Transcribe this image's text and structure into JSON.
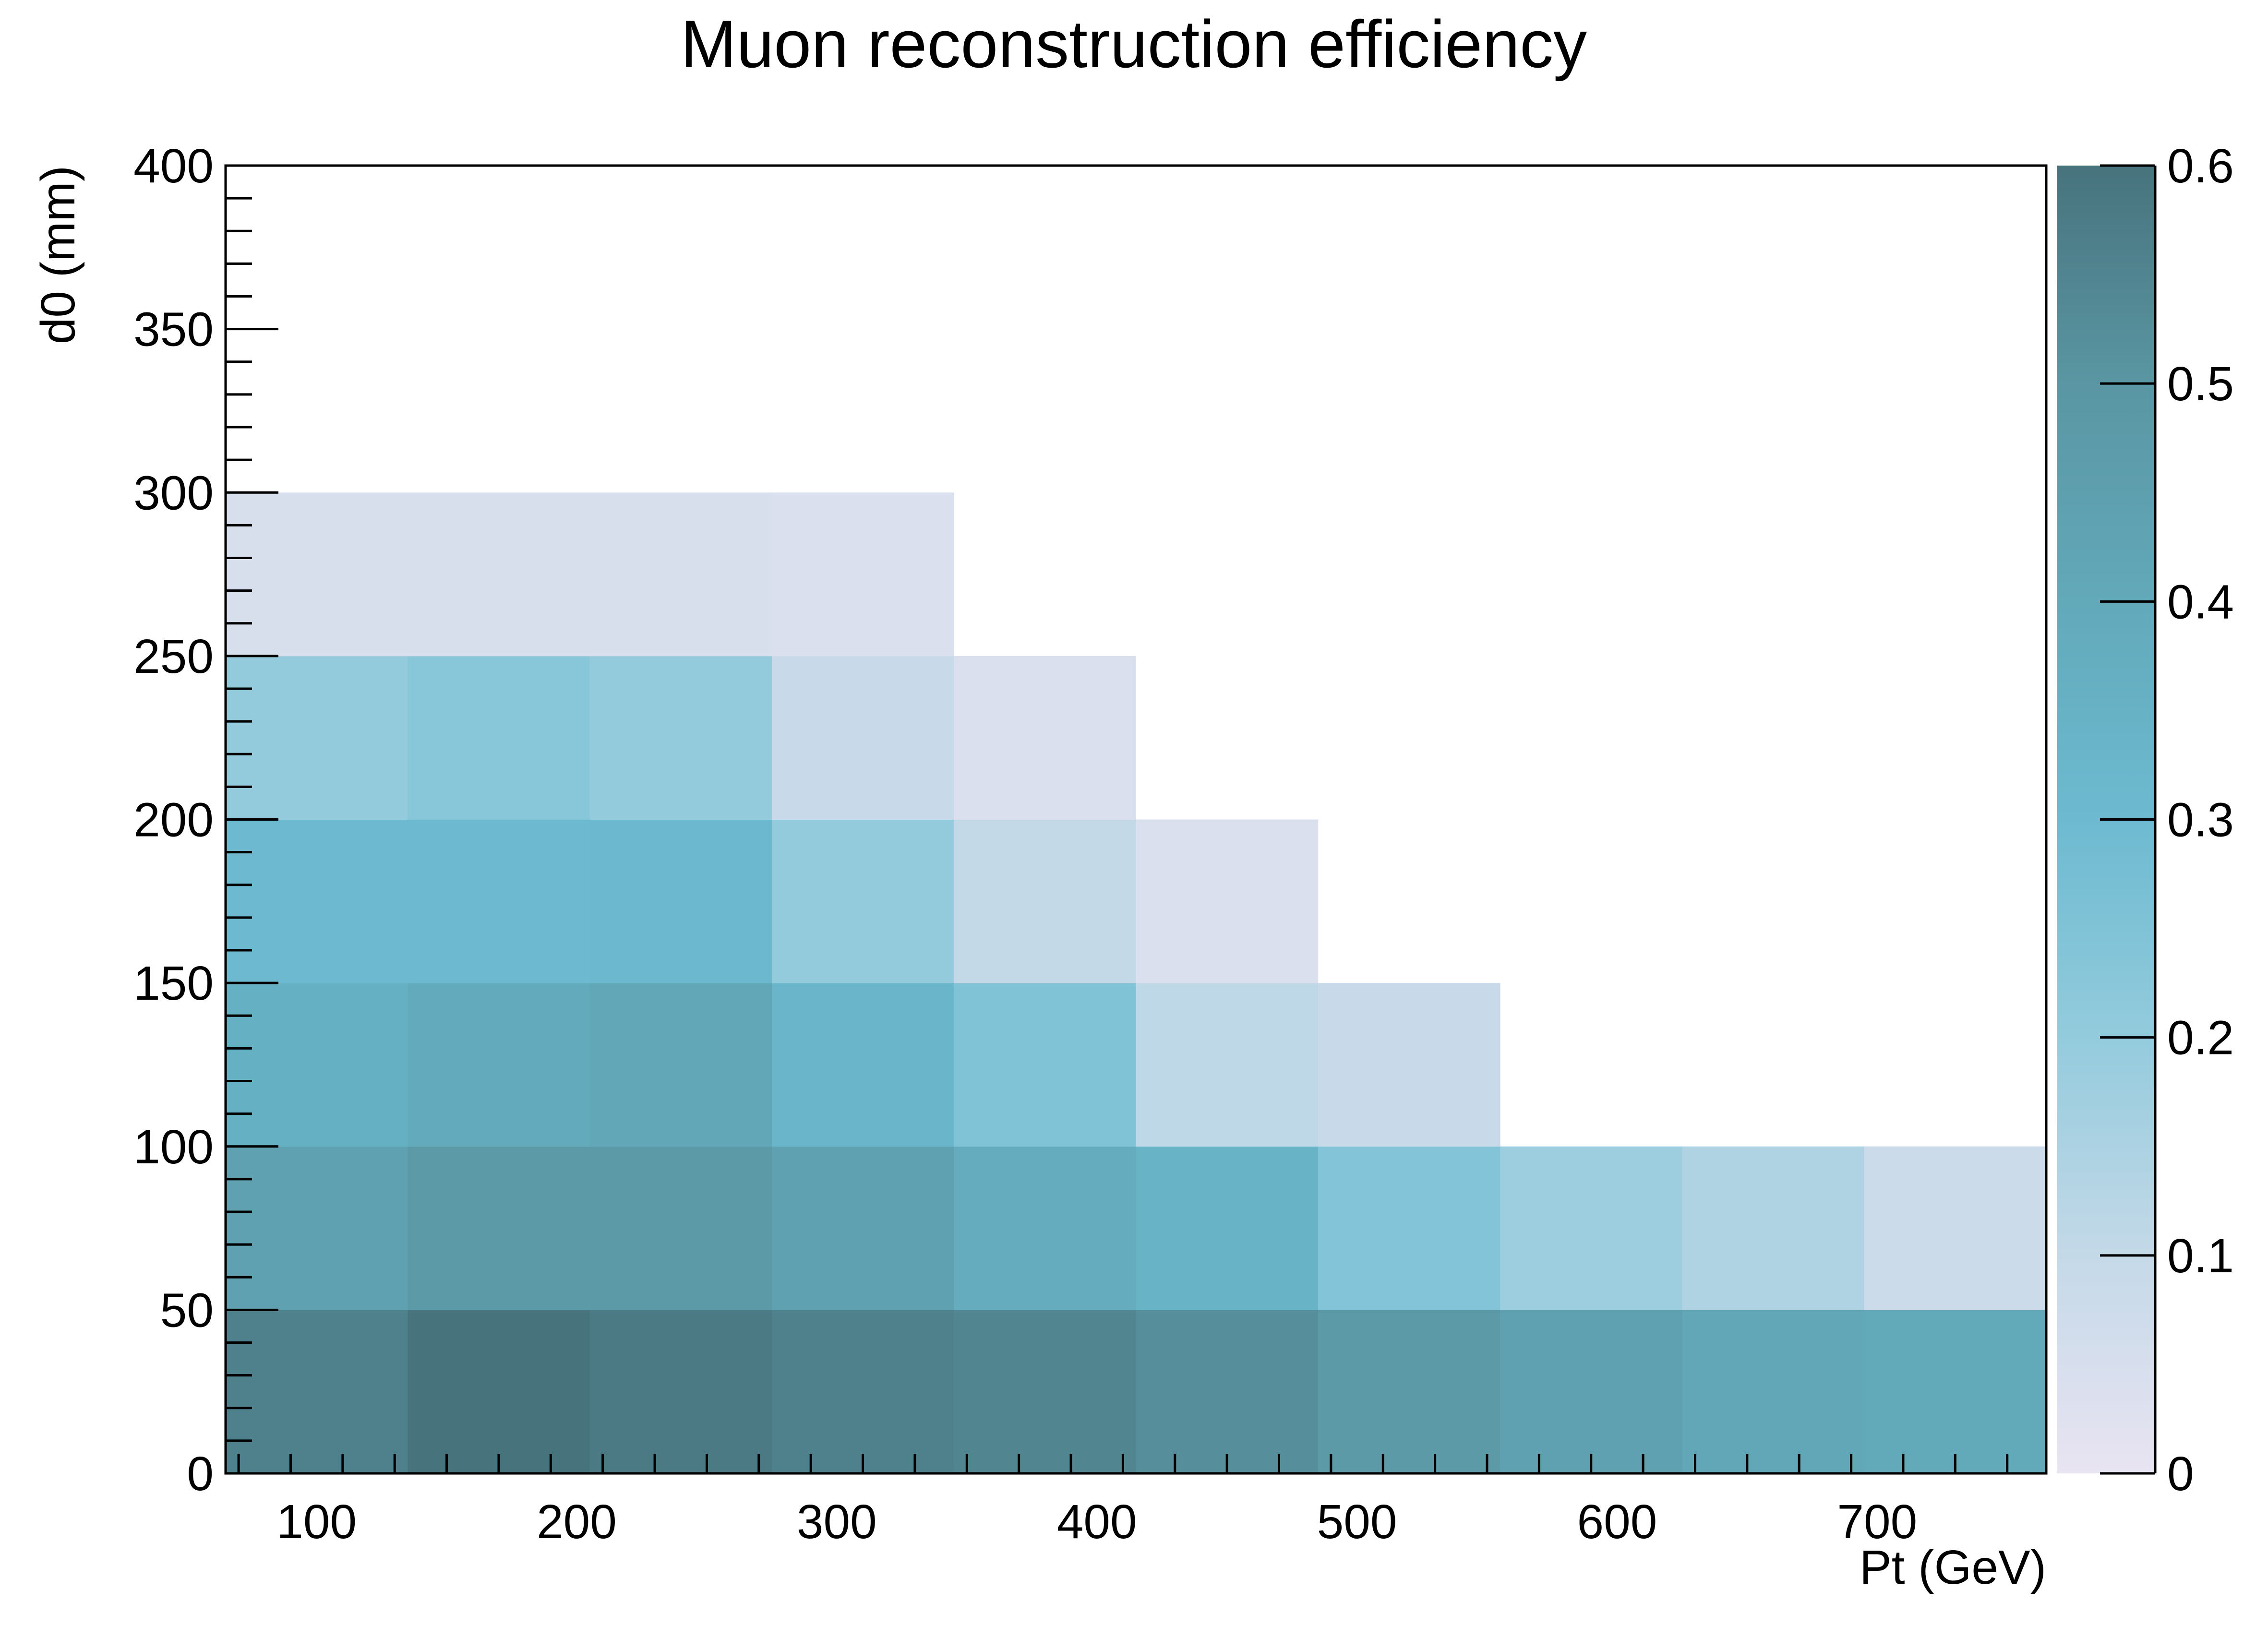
{
  "chart_data": {
    "type": "heatmap",
    "title": "Muon reconstruction efficiency",
    "xlabel": "Pt (GeV)",
    "ylabel": "d0 (mm)",
    "xlim": [
      65,
      765
    ],
    "ylim": [
      0,
      400
    ],
    "x_bin_edges": [
      65,
      135,
      205,
      275,
      345,
      415,
      485,
      555,
      625,
      695,
      765
    ],
    "y_bin_edges": [
      0,
      50,
      100,
      150,
      200,
      250,
      300
    ],
    "x_ticks": [
      "100",
      "200",
      "300",
      "400",
      "500",
      "600",
      "700"
    ],
    "y_ticks": [
      "0",
      "50",
      "100",
      "150",
      "200",
      "250",
      "300",
      "350",
      "400"
    ],
    "z_range": [
      0,
      0.6
    ],
    "z_ticks": [
      "0",
      "0.1",
      "0.2",
      "0.3",
      "0.4",
      "0.5",
      "0.6"
    ],
    "values": [
      [
        0.56,
        0.6,
        0.58,
        0.56,
        0.55,
        0.52,
        0.48,
        0.44,
        0.41,
        0.4
      ],
      [
        0.44,
        0.48,
        0.48,
        0.44,
        0.38,
        0.34,
        0.24,
        0.18,
        0.14,
        0.08
      ],
      [
        0.36,
        0.39,
        0.41,
        0.33,
        0.25,
        0.11,
        0.09,
        null,
        null,
        null
      ],
      [
        0.3,
        0.3,
        0.31,
        0.2,
        0.1,
        0.04,
        null,
        null,
        null,
        null
      ],
      [
        0.2,
        0.23,
        0.2,
        0.09,
        0.04,
        null,
        null,
        null,
        null,
        null
      ],
      [
        0.05,
        0.05,
        0.05,
        0.04,
        null,
        null,
        null,
        null,
        null,
        null
      ]
    ],
    "colormap": [
      "#e9e4f2",
      "#c4d9e8",
      "#93cbdd",
      "#6dbad0",
      "#62a9ba",
      "#5a96a3",
      "#47737d"
    ]
  }
}
